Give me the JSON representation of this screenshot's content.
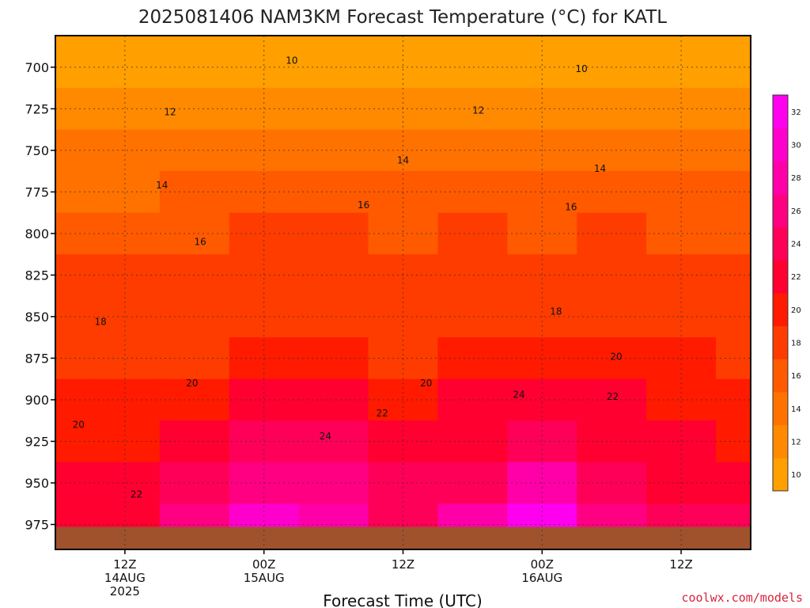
{
  "chart_data": {
    "type": "heatmap",
    "title": "2025081406 NAM3KM Forecast Temperature (°C) for KATL",
    "xlabel": "Forecast Time (UTC)",
    "x_ticks": [
      {
        "hour": 6,
        "lines": [
          "12Z",
          "14AUG",
          "2025"
        ]
      },
      {
        "hour": 18,
        "lines": [
          "00Z",
          "15AUG"
        ]
      },
      {
        "hour": 30,
        "lines": [
          "12Z"
        ]
      },
      {
        "hour": 42,
        "lines": [
          "00Z",
          "16AUG"
        ]
      },
      {
        "hour": 54,
        "lines": [
          "12Z"
        ]
      }
    ],
    "xlim_hours": [
      0,
      60
    ],
    "y_ticks": [
      "700",
      "725",
      "750",
      "775",
      "800",
      "825",
      "850",
      "875",
      "900",
      "925",
      "950",
      "975"
    ],
    "ylim_hpa": [
      681,
      990
    ],
    "levels": [
      700,
      725,
      750,
      775,
      800,
      825,
      850,
      875,
      900,
      925,
      950,
      975
    ],
    "times_hours": [
      0,
      6,
      12,
      18,
      24,
      30,
      36,
      42,
      48,
      54,
      60
    ],
    "values_c": [
      [
        10,
        10,
        10,
        10,
        10,
        10,
        10,
        10,
        10,
        10,
        10
      ],
      [
        12,
        12,
        12,
        12,
        12,
        12,
        12,
        12,
        12,
        12,
        12
      ],
      [
        14,
        14,
        14,
        14,
        14,
        14,
        14,
        14,
        14,
        14,
        14
      ],
      [
        14,
        14,
        16,
        16,
        16,
        16,
        16,
        16,
        16,
        16,
        16
      ],
      [
        16,
        16,
        16,
        18,
        18,
        16,
        18,
        16,
        18,
        16,
        16
      ],
      [
        18,
        18,
        18,
        18,
        18,
        18,
        18,
        18,
        18,
        18,
        18
      ],
      [
        18,
        18,
        18,
        18,
        18,
        18,
        18,
        18,
        18,
        18,
        18
      ],
      [
        18,
        18,
        18,
        20,
        20,
        18,
        20,
        20,
        20,
        20,
        18
      ],
      [
        20,
        20,
        20,
        22,
        22,
        20,
        22,
        22,
        22,
        20,
        20
      ],
      [
        20,
        20,
        22,
        24,
        24,
        22,
        22,
        24,
        22,
        22,
        20
      ],
      [
        22,
        22,
        24,
        26,
        26,
        24,
        24,
        28,
        24,
        22,
        22
      ],
      [
        22,
        22,
        26,
        30,
        28,
        24,
        28,
        32,
        26,
        24,
        24
      ]
    ],
    "contour_labels": [
      {
        "value": "10",
        "hour": 20.4,
        "hpa": 696
      },
      {
        "value": "10",
        "hour": 45.4,
        "hpa": 701
      },
      {
        "value": "12",
        "hour": 9.9,
        "hpa": 727
      },
      {
        "value": "12",
        "hour": 36.5,
        "hpa": 726
      },
      {
        "value": "14",
        "hour": 30.0,
        "hpa": 756
      },
      {
        "value": "14",
        "hour": 47.0,
        "hpa": 761
      },
      {
        "value": "14",
        "hour": 9.2,
        "hpa": 771
      },
      {
        "value": "16",
        "hour": 26.6,
        "hpa": 783
      },
      {
        "value": "16",
        "hour": 44.5,
        "hpa": 784
      },
      {
        "value": "16",
        "hour": 12.5,
        "hpa": 805
      },
      {
        "value": "18",
        "hour": 3.9,
        "hpa": 853
      },
      {
        "value": "18",
        "hour": 43.2,
        "hpa": 847
      },
      {
        "value": "20",
        "hour": 48.4,
        "hpa": 874
      },
      {
        "value": "20",
        "hour": 11.8,
        "hpa": 890
      },
      {
        "value": "20",
        "hour": 32.0,
        "hpa": 890
      },
      {
        "value": "20",
        "hour": 2.0,
        "hpa": 915
      },
      {
        "value": "22",
        "hour": 48.1,
        "hpa": 898
      },
      {
        "value": "22",
        "hour": 28.2,
        "hpa": 908
      },
      {
        "value": "22",
        "hour": 7.0,
        "hpa": 957
      },
      {
        "value": "24",
        "hour": 40.0,
        "hpa": 897
      },
      {
        "value": "24",
        "hour": 23.3,
        "hpa": 922
      }
    ],
    "colorbar": {
      "ticks": [
        "10",
        "12",
        "14",
        "16",
        "18",
        "20",
        "22",
        "24",
        "26",
        "28",
        "30",
        "32"
      ],
      "colors": [
        "#ff9f00",
        "#ff8a00",
        "#ff7200",
        "#ff5a00",
        "#ff3c00",
        "#ff1a00",
        "#ff0030",
        "#ff0058",
        "#ff0082",
        "#ff00a8",
        "#ff00cc",
        "#ff00ee"
      ]
    },
    "ground_color": "#a0522d",
    "grid": true
  },
  "credit": "coolwx.com/models"
}
